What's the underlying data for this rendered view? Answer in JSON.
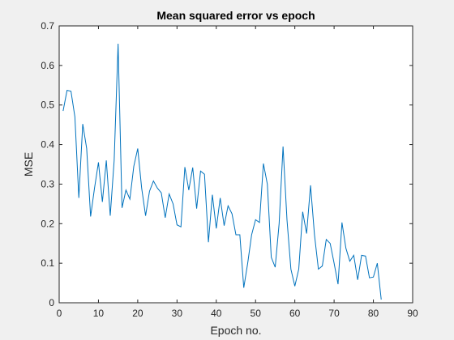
{
  "chart_data": {
    "type": "line",
    "title": "Mean squared error vs epoch",
    "xlabel": "Epoch no.",
    "ylabel": "MSE",
    "xlim": [
      0,
      90
    ],
    "ylim": [
      0,
      0.7
    ],
    "xticks": [
      0,
      10,
      20,
      30,
      40,
      50,
      60,
      70,
      80,
      90
    ],
    "yticks": [
      0,
      0.1,
      0.2,
      0.3,
      0.4,
      0.5,
      0.6,
      0.7
    ],
    "xtick_labels": [
      "0",
      "10",
      "20",
      "30",
      "40",
      "50",
      "60",
      "70",
      "80",
      "90"
    ],
    "ytick_labels": [
      "0",
      "0.1",
      "0.2",
      "0.3",
      "0.4",
      "0.5",
      "0.6",
      "0.7"
    ],
    "grid": false,
    "line_color": "#0072bd",
    "series": [
      {
        "x": [
          1,
          2,
          3,
          4,
          5,
          6,
          7,
          8,
          9,
          10,
          11,
          12,
          13,
          14,
          15,
          16,
          17,
          18,
          19,
          20,
          21,
          22,
          23,
          24,
          25,
          26,
          27,
          28,
          29,
          30,
          31,
          32,
          33,
          34,
          35,
          36,
          37,
          38,
          39,
          40,
          41,
          42,
          43,
          44,
          45,
          46,
          47,
          48,
          49,
          50,
          51,
          52,
          53,
          54,
          55,
          56,
          57,
          58,
          59,
          60,
          61,
          62,
          63,
          64,
          65,
          66,
          67,
          68,
          69,
          70,
          71,
          72,
          73,
          74,
          75,
          76,
          77,
          78,
          79,
          80,
          81,
          82
        ],
        "y": [
          0.485,
          0.537,
          0.535,
          0.47,
          0.265,
          0.452,
          0.39,
          0.218,
          0.29,
          0.355,
          0.255,
          0.36,
          0.22,
          0.36,
          0.655,
          0.24,
          0.285,
          0.262,
          0.345,
          0.39,
          0.29,
          0.22,
          0.282,
          0.308,
          0.29,
          0.278,
          0.215,
          0.275,
          0.25,
          0.197,
          0.192,
          0.343,
          0.285,
          0.342,
          0.238,
          0.333,
          0.325,
          0.153,
          0.273,
          0.188,
          0.265,
          0.195,
          0.245,
          0.225,
          0.172,
          0.172,
          0.038,
          0.1,
          0.172,
          0.21,
          0.203,
          0.352,
          0.3,
          0.115,
          0.09,
          0.2,
          0.395,
          0.21,
          0.085,
          0.042,
          0.085,
          0.23,
          0.175,
          0.297,
          0.172,
          0.085,
          0.093,
          0.16,
          0.15,
          0.1,
          0.047,
          0.203,
          0.138,
          0.105,
          0.12,
          0.058,
          0.12,
          0.118,
          0.063,
          0.065,
          0.1,
          0.008
        ]
      }
    ]
  }
}
